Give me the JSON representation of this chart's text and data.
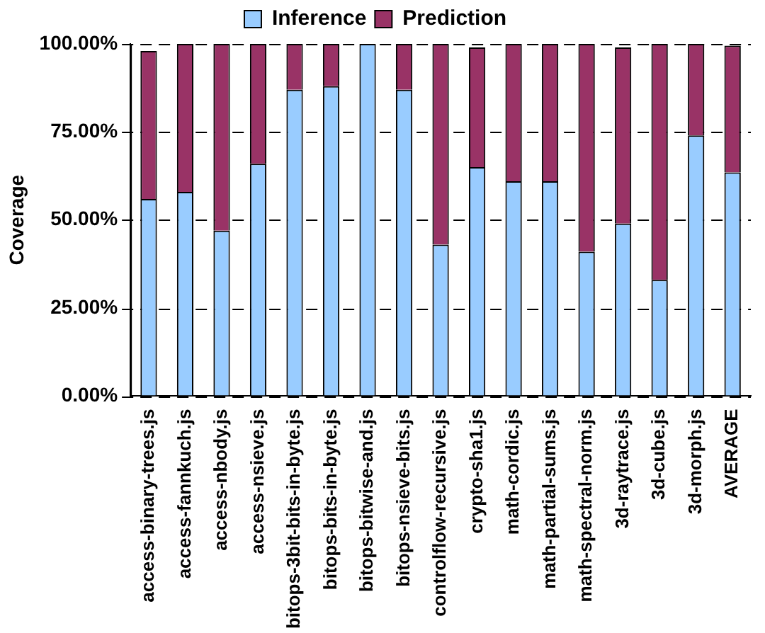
{
  "chart_data": {
    "type": "bar",
    "stacked": true,
    "ylabel": "Coverage",
    "categories": [
      "access-binary-trees.js",
      "access-fannkuch.js",
      "access-nbody.js",
      "access-nsieve.js",
      "bitops-3bit-bits-in-byte.js",
      "bitops-bits-in-byte.js",
      "bitops-bitwise-and.js",
      "bitops-nsieve-bits.js",
      "controlflow-recursive.js",
      "crypto-sha1.js",
      "math-cordic.js",
      "math-partial-sums.js",
      "math-spectral-norm.js",
      "3d-raytrace.js",
      "3d-cube.js",
      "3d-morph.js",
      "AVERAGE"
    ],
    "series": [
      {
        "name": "Inference",
        "color": "#99ccff",
        "values": [
          56,
          58,
          47,
          66,
          87,
          88,
          100,
          87,
          43,
          65,
          61,
          61,
          41,
          49,
          33,
          74,
          63.5
        ]
      },
      {
        "name": "Prediction",
        "color": "#993366",
        "values": [
          42,
          42,
          53,
          34,
          13,
          12,
          0,
          13,
          57,
          34,
          39,
          39,
          59,
          50,
          67,
          26,
          36
        ]
      }
    ],
    "ylim": [
      0,
      100
    ],
    "yticks": [
      {
        "value": 0,
        "label": "0.00%"
      },
      {
        "value": 25,
        "label": "25.00%"
      },
      {
        "value": 50,
        "label": "50.00%"
      },
      {
        "value": 75,
        "label": "75.00%"
      },
      {
        "value": 100,
        "label": "100.00%"
      }
    ],
    "grid": "y",
    "legend": "top"
  }
}
